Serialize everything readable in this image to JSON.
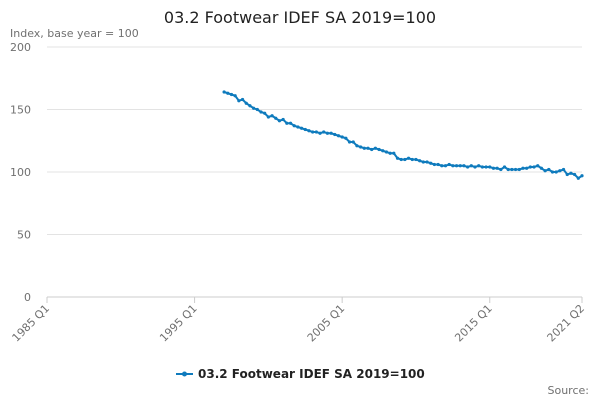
{
  "chart_data": {
    "type": "line",
    "title": "03.2 Footwear IDEF SA 2019=100",
    "subtitle": "Index, base year = 100",
    "source": "Source:",
    "categories": [
      "1985 Q1",
      null,
      null,
      null,
      null,
      null,
      null,
      null,
      null,
      null,
      null,
      null,
      null,
      null,
      null,
      null,
      null,
      null,
      null,
      null,
      null,
      null,
      null,
      null,
      null,
      null,
      null,
      null,
      null,
      null,
      null,
      null,
      null,
      null,
      null,
      null,
      null,
      null,
      null,
      null,
      "1995 Q1",
      null,
      null,
      null,
      null,
      null,
      null,
      null,
      null,
      null,
      null,
      null,
      null,
      null,
      null,
      null,
      null,
      null,
      null,
      null,
      null,
      null,
      null,
      null,
      null,
      null,
      null,
      null,
      null,
      null,
      null,
      null,
      null,
      null,
      null,
      null,
      null,
      null,
      null,
      null,
      "2005 Q1",
      null,
      null,
      null,
      null,
      null,
      null,
      null,
      null,
      null,
      null,
      null,
      null,
      null,
      null,
      null,
      null,
      null,
      null,
      null,
      null,
      null,
      null,
      null,
      null,
      null,
      null,
      null,
      null,
      null,
      null,
      null,
      null,
      null,
      null,
      null,
      null,
      null,
      null,
      null,
      "2015 Q1",
      null,
      null,
      null,
      null,
      null,
      null,
      null,
      null,
      null,
      null,
      null,
      null,
      null,
      null,
      null,
      null,
      null,
      null,
      null,
      null,
      null,
      null,
      null,
      null,
      "2021 Q2"
    ],
    "series": [
      {
        "name": "03.2 Footwear IDEF SA 2019=100",
        "color": "#0f7bbd",
        "values": [
          null,
          null,
          null,
          null,
          null,
          null,
          null,
          null,
          null,
          null,
          null,
          null,
          null,
          null,
          null,
          null,
          null,
          null,
          null,
          null,
          null,
          null,
          null,
          null,
          null,
          null,
          null,
          null,
          null,
          null,
          null,
          null,
          null,
          null,
          null,
          null,
          null,
          null,
          null,
          null,
          null,
          null,
          null,
          null,
          null,
          null,
          null,
          null,
          164,
          163,
          162,
          161,
          157,
          158,
          155,
          153,
          151,
          150,
          148,
          147,
          144,
          145,
          143,
          141,
          142,
          139,
          139,
          137,
          136,
          135,
          134,
          133,
          132,
          132,
          131,
          132,
          131,
          131,
          130,
          129,
          128,
          127,
          124,
          124,
          121,
          120,
          119,
          119,
          118,
          119,
          118,
          117,
          116,
          115,
          115,
          111,
          110,
          110,
          111,
          110,
          110,
          109,
          108,
          108,
          107,
          106,
          106,
          105,
          105,
          106,
          105,
          105,
          105,
          105,
          104,
          105,
          104,
          105,
          104,
          104,
          104,
          103,
          103,
          102,
          104,
          102,
          102,
          102,
          102,
          103,
          103,
          104,
          104,
          105,
          103,
          101,
          102,
          100,
          100,
          101,
          102,
          98,
          99,
          98,
          95,
          97
        ]
      }
    ],
    "ylim": [
      0,
      200
    ],
    "yticks": [
      0,
      50,
      100,
      150,
      200
    ],
    "grid": true
  }
}
